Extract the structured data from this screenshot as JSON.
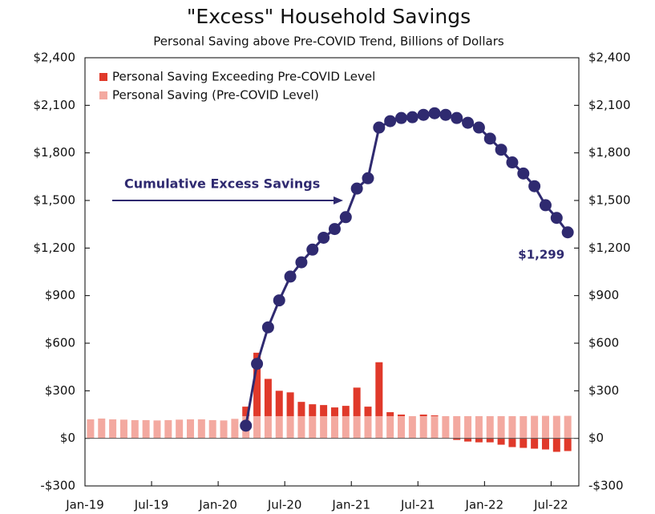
{
  "chart_data": {
    "type": "bar",
    "title": "\"Excess\" Household Savings",
    "subtitle": "Personal Saving above Pre-COVID Trend, Billions of Dollars",
    "annotation": "Cumulative Excess Savings",
    "categories": [
      "Jan-19",
      null,
      null,
      null,
      null,
      null,
      "Jul-19",
      null,
      null,
      null,
      null,
      null,
      "Jan-20",
      null,
      null,
      null,
      null,
      null,
      "Jul-20",
      null,
      null,
      null,
      null,
      null,
      "Jan-21",
      null,
      null,
      null,
      null,
      null,
      "Jul-21",
      null,
      null,
      null,
      null,
      null,
      "Jan-22",
      null,
      null,
      null,
      null,
      null,
      "Jul-22",
      null
    ],
    "series": [
      {
        "name": "Personal Saving Exceeding Pre-COVID Level",
        "type": "bar",
        "stack": "top",
        "color": "#e0392a",
        "values": [
          null,
          null,
          null,
          null,
          null,
          null,
          null,
          null,
          null,
          null,
          null,
          null,
          null,
          null,
          60,
          400,
          235,
          160,
          150,
          90,
          75,
          70,
          55,
          65,
          180,
          60,
          340,
          25,
          10,
          0,
          10,
          5,
          0,
          -10,
          -20,
          -25,
          -25,
          -40,
          -55,
          -60,
          -65,
          -70,
          -85,
          -80
        ]
      },
      {
        "name": "Personal Saving (Pre-COVID Level)",
        "type": "bar",
        "stack": "base",
        "color": "#f3a9a0",
        "values": [
          120,
          125,
          120,
          118,
          115,
          115,
          113,
          115,
          118,
          120,
          120,
          115,
          113,
          123,
          140,
          140,
          140,
          140,
          140,
          140,
          140,
          140,
          140,
          140,
          140,
          140,
          140,
          140,
          140,
          140,
          140,
          140,
          140,
          140,
          140,
          140,
          140,
          140,
          140,
          140,
          142,
          142,
          142,
          142
        ]
      },
      {
        "type": "line",
        "color": "#2f2a70",
        "values": [
          null,
          null,
          null,
          null,
          null,
          null,
          null,
          null,
          null,
          null,
          null,
          null,
          null,
          null,
          80,
          470,
          700,
          870,
          1020,
          1110,
          1190,
          1265,
          1320,
          1395,
          1575,
          1640,
          1960,
          2000,
          2020,
          2025,
          2040,
          2050,
          2040,
          2020,
          1990,
          1960,
          1890,
          1820,
          1740,
          1670,
          1590,
          1470,
          1390,
          1299
        ],
        "value_labels": [
          null,
          null,
          null,
          null,
          null,
          null,
          null,
          null,
          null,
          null,
          null,
          null,
          null,
          null,
          null,
          null,
          null,
          null,
          null,
          null,
          null,
          null,
          null,
          null,
          null,
          null,
          null,
          null,
          null,
          null,
          null,
          null,
          null,
          null,
          null,
          null,
          null,
          null,
          null,
          null,
          null,
          null,
          null,
          "$1,299"
        ]
      }
    ],
    "ylim": [
      -300,
      2400
    ],
    "yticks": [
      {
        "value": -300,
        "label": "-$300"
      },
      {
        "value": 0,
        "label": "$0"
      },
      {
        "value": 300,
        "label": "$300"
      },
      {
        "value": 600,
        "label": "$600"
      },
      {
        "value": 900,
        "label": "$900"
      },
      {
        "value": 1200,
        "label": "$1,200"
      },
      {
        "value": 1500,
        "label": "$1,500"
      },
      {
        "value": 1800,
        "label": "$1,800"
      },
      {
        "value": 2100,
        "label": "$2,100"
      },
      {
        "value": 2400,
        "label": "$2,400"
      }
    ],
    "legend": "top-left"
  }
}
